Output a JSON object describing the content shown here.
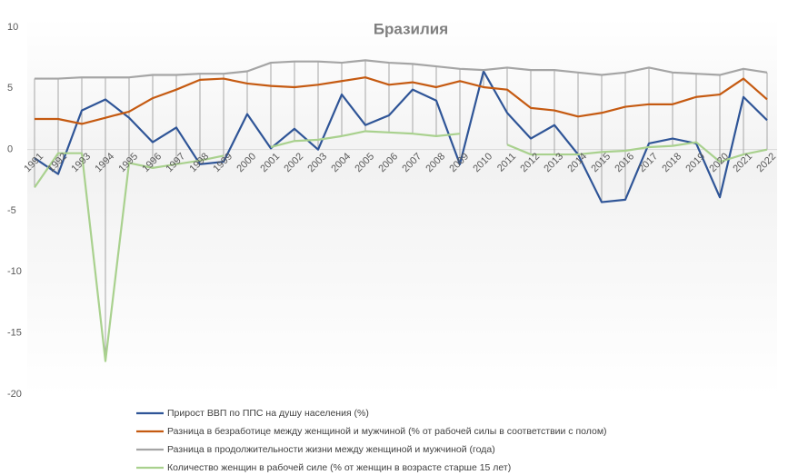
{
  "chart_data": {
    "type": "line",
    "title": "Бразилия",
    "categories": [
      "1991",
      "1992",
      "1993",
      "1994",
      "1995",
      "1996",
      "1997",
      "1998",
      "1999",
      "2000",
      "2001",
      "2002",
      "2003",
      "2004",
      "2005",
      "2006",
      "2007",
      "2008",
      "2009",
      "2010",
      "2011",
      "2012",
      "2013",
      "2014",
      "2015",
      "2016",
      "2017",
      "2018",
      "2019",
      "2020",
      "2021",
      "2022"
    ],
    "series": [
      {
        "name": "Прирост ВВП по ППС на душу населения (%)",
        "color": "#2f5597",
        "values": [
          -0.7,
          -2.0,
          3.2,
          4.1,
          2.6,
          0.6,
          1.8,
          -1.2,
          -1.0,
          2.9,
          0.1,
          1.7,
          0.0,
          4.5,
          2.0,
          2.8,
          4.9,
          4.0,
          -1.2,
          6.4,
          3.0,
          0.9,
          2.0,
          -0.4,
          -4.3,
          -4.1,
          0.5,
          0.9,
          0.5,
          -3.9,
          4.3,
          2.4
        ]
      },
      {
        "name": "Разница в безработице между женщиной и мужчиной (% от рабочей силы в соответствии с полом)",
        "color": "#c55a11",
        "values": [
          2.5,
          2.5,
          2.1,
          2.6,
          3.1,
          4.2,
          4.9,
          5.7,
          5.8,
          5.4,
          5.2,
          5.1,
          5.3,
          5.6,
          5.9,
          5.3,
          5.5,
          5.1,
          5.6,
          5.1,
          4.9,
          3.4,
          3.2,
          2.7,
          3.0,
          3.5,
          3.7,
          3.7,
          4.3,
          4.5,
          5.8,
          4.1
        ]
      },
      {
        "name": "Разница в продолжительности жизни между женщиной и мужчиной (года)",
        "color": "#a5a5a5",
        "values": [
          5.8,
          5.8,
          5.9,
          5.9,
          5.9,
          6.1,
          6.1,
          6.2,
          6.2,
          6.4,
          7.1,
          7.2,
          7.2,
          7.1,
          7.3,
          7.1,
          7.0,
          6.8,
          6.6,
          6.5,
          6.7,
          6.5,
          6.5,
          6.3,
          6.1,
          6.3,
          6.7,
          6.3,
          6.2,
          6.1,
          6.6,
          6.3
        ]
      },
      {
        "name": "Количество женщин в рабочей силе (% от женщин в возрасте старше 15 лет)",
        "color": "#a9d18e",
        "values": [
          -3.1,
          -0.3,
          -0.3,
          -17.3,
          -1.1,
          -1.5,
          -1.2,
          -0.9,
          -0.5,
          null,
          0.2,
          0.7,
          0.8,
          1.1,
          1.5,
          1.4,
          1.3,
          1.1,
          1.3,
          null,
          0.4,
          -0.4,
          -0.4,
          -0.4,
          -0.2,
          -0.1,
          0.2,
          0.3,
          0.6,
          -1.0,
          -0.4,
          0.0
        ]
      }
    ],
    "ylim": [
      -20,
      10
    ],
    "yticks": [
      -20,
      -15,
      -10,
      -5,
      0,
      5,
      10
    ],
    "high_low_lines": true
  }
}
